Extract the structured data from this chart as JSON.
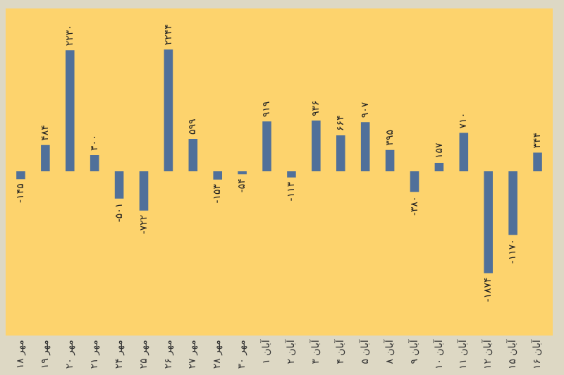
{
  "chart_data": {
    "type": "bar",
    "categories": [
      "۱۸ مهر",
      "۱۹ مهر",
      "۲۰ مهر",
      "۲۱ مهر",
      "۲۴ مهر",
      "۲۵ مهر",
      "۲۶ مهر",
      "۲۷ مهر",
      "۲۸ مهر",
      "۳۰ مهر",
      "۱ آبان",
      "۲ آبان",
      "۳ آبان",
      "۴ آبان",
      "۵ آبان",
      "۸ آبان",
      "۹ آبان",
      "۱۰ آبان",
      "۱۱ آبان",
      "۱۲ آبان",
      "۱۵ آبان",
      "۱۶ آبان"
    ],
    "values": [
      -145,
      484,
      2230,
      300,
      -501,
      -722,
      2244,
      599,
      -153,
      -54,
      919,
      -113,
      936,
      664,
      907,
      395,
      -380,
      157,
      710,
      -1874,
      -1170,
      344
    ],
    "value_labels": [
      "-۱۴۵",
      "۴۸۴",
      "۲۲۳۰",
      "۳۰۰",
      "-۵۰۱",
      "-۷۲۲",
      "۲۲۴۴",
      "۵۹۹",
      "-۱۵۳",
      "-۵۴",
      "۹۱۹",
      "-۱۱۳",
      "۹۳۶",
      "۶۶۴",
      "۹۰۷",
      "۳۹۵",
      "-۳۸۰",
      "۱۵۷",
      "۷۱۰",
      "-۱۸۷۴",
      "-۱۱۷۰",
      "۳۴۴"
    ],
    "color": "#50709a",
    "grid": false,
    "legend": false
  }
}
